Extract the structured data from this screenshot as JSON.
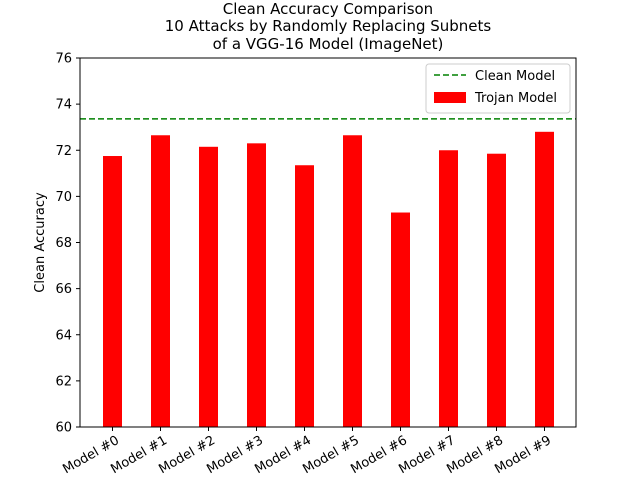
{
  "chart_data": {
    "type": "bar",
    "title_lines": [
      "Clean Accuracy Comparison",
      "10 Attacks by Randomly Replacing Subnets",
      "of a VGG-16 Model (ImageNet)"
    ],
    "xlabel": "",
    "ylabel": "Clean Accuracy",
    "ylim": [
      60,
      76
    ],
    "yticks": [
      60,
      62,
      64,
      66,
      68,
      70,
      72,
      74,
      76
    ],
    "categories": [
      "Model #0",
      "Model #1",
      "Model #2",
      "Model #3",
      "Model #4",
      "Model #5",
      "Model #6",
      "Model #7",
      "Model #8",
      "Model #9"
    ],
    "series": [
      {
        "name": "Trojan Model",
        "color": "#ff0000",
        "values": [
          71.75,
          72.65,
          72.15,
          72.3,
          71.35,
          72.65,
          69.3,
          72.0,
          71.85,
          72.8
        ]
      }
    ],
    "reference_line": {
      "name": "Clean Model",
      "value": 73.36,
      "color": "#008000",
      "style": "dashed"
    },
    "legend": {
      "position": "top-right",
      "entries": [
        "Clean Model",
        "Trojan Model"
      ]
    },
    "grid": false
  }
}
